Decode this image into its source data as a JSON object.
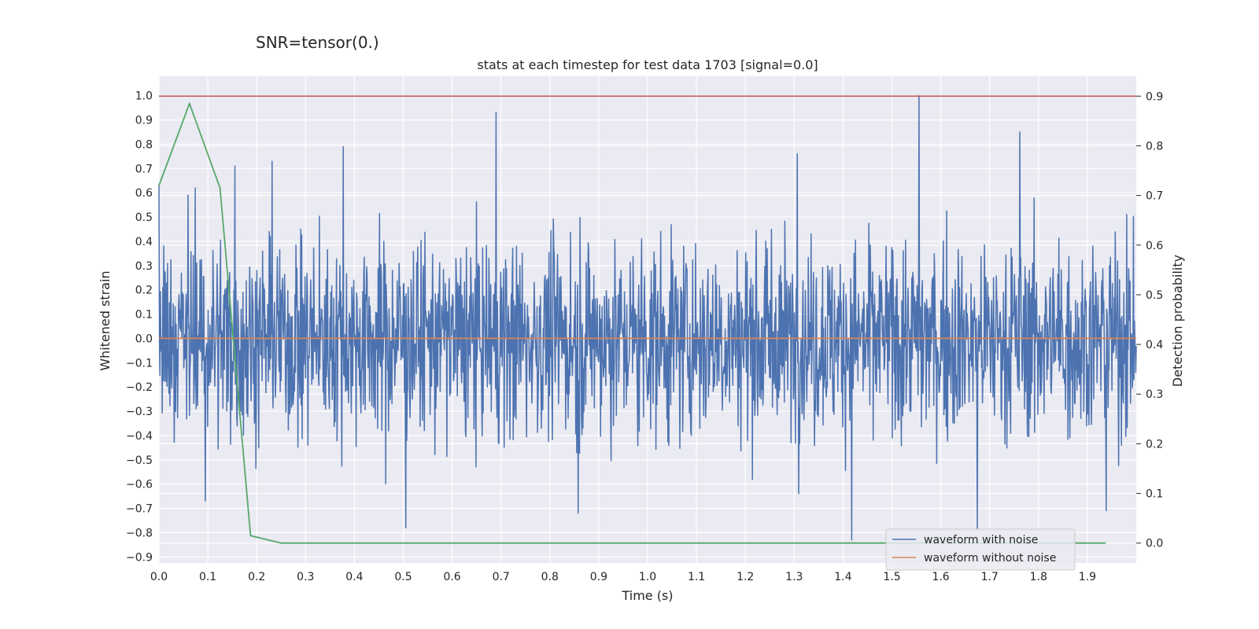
{
  "suptitle": "SNR=tensor(0.)",
  "chart_data": {
    "type": "line",
    "title": "stats at each timestep for test data 1703 [signal=0.0]",
    "xlabel": "Time (s)",
    "ylabel": "Whitened strain",
    "y2label": "Detection probability",
    "xlim": [
      0.0,
      2.0
    ],
    "ylim": [
      -0.925,
      1.08
    ],
    "y2lim": [
      -0.04,
      0.94
    ],
    "x_ticks": [
      0.0,
      0.1,
      0.2,
      0.3,
      0.4,
      0.5,
      0.6,
      0.7,
      0.8,
      0.9,
      1.0,
      1.1,
      1.2,
      1.3,
      1.4,
      1.5,
      1.6,
      1.7,
      1.8,
      1.9
    ],
    "x_tick_labels": [
      "0.0",
      "0.1",
      "0.2",
      "0.3",
      "0.4",
      "0.5",
      "0.6",
      "0.7",
      "0.8",
      "0.9",
      "1.0",
      "1.1",
      "1.2",
      "1.3",
      "1.4",
      "1.5",
      "1.6",
      "1.7",
      "1.8",
      "1.9"
    ],
    "y_ticks": [
      1.0,
      0.9,
      0.8,
      0.7,
      0.6,
      0.5,
      0.4,
      0.3,
      0.2,
      0.1,
      0.0,
      -0.1,
      -0.2,
      -0.3,
      -0.4,
      -0.5,
      -0.6,
      -0.7,
      -0.8,
      -0.9
    ],
    "y_tick_labels": [
      "1.0",
      "0.9",
      "0.8",
      "0.7",
      "0.6",
      "0.5",
      "0.4",
      "0.3",
      "0.2",
      "0.1",
      "0.0",
      "−0.1",
      "−0.2",
      "−0.3",
      "−0.4",
      "−0.5",
      "−0.6",
      "−0.7",
      "−0.8",
      "−0.9"
    ],
    "y2_ticks": [
      0.9,
      0.8,
      0.7,
      0.6,
      0.5,
      0.4,
      0.3,
      0.2,
      0.1,
      0.0
    ],
    "y2_tick_labels": [
      "0.9",
      "0.8",
      "0.7",
      "0.6",
      "0.5",
      "0.4",
      "0.3",
      "0.2",
      "0.1",
      "0.0"
    ],
    "grid": true,
    "legend_position": "bottom-right",
    "series": [
      {
        "name": "waveform with noise",
        "color": "#4c72b0",
        "axis": "left",
        "x_start": 0.0,
        "x_end": 2.0,
        "peaks": [
          {
            "x": 0.0,
            "y": 0.63
          },
          {
            "x": 0.06,
            "y": 0.59
          },
          {
            "x": 0.074,
            "y": 0.62
          },
          {
            "x": 0.155,
            "y": 0.71
          },
          {
            "x": 0.232,
            "y": 0.73
          },
          {
            "x": 0.377,
            "y": 0.79
          },
          {
            "x": 0.69,
            "y": 0.93
          },
          {
            "x": 1.306,
            "y": 0.76
          },
          {
            "x": 1.555,
            "y": 1.0
          },
          {
            "x": 1.762,
            "y": 0.85
          },
          {
            "x": 1.98,
            "y": 0.51
          },
          {
            "x": 0.505,
            "y": -0.78
          },
          {
            "x": 0.858,
            "y": -0.72
          },
          {
            "x": 1.418,
            "y": -0.83
          },
          {
            "x": 1.675,
            "y": -0.79
          },
          {
            "x": 1.938,
            "y": -0.71
          },
          {
            "x": 0.095,
            "y": -0.67
          }
        ]
      },
      {
        "name": "waveform without noise",
        "color": "#dd8452",
        "axis": "left",
        "x": [
          0.0,
          2.0
        ],
        "y": [
          0.0,
          0.0
        ]
      },
      {
        "name": "",
        "color": "#55a868",
        "axis": "right",
        "x": [
          0.0,
          0.0625,
          0.125,
          0.1875,
          0.25,
          0.3125,
          0.375,
          0.4375,
          0.5,
          0.5625,
          0.625,
          0.6875,
          0.75,
          0.8125,
          0.875,
          0.9375,
          1.0,
          1.0625,
          1.125,
          1.1875,
          1.25,
          1.3125,
          1.375,
          1.4375,
          1.5,
          1.5625,
          1.625,
          1.6875,
          1.75,
          1.8125,
          1.875,
          1.9375
        ],
        "y": [
          0.72,
          0.885,
          0.715,
          0.015,
          0.0,
          0.0,
          0.0,
          0.0,
          0.0,
          0.0,
          0.0,
          0.0,
          0.0,
          0.0,
          0.0,
          0.0,
          0.0,
          0.0,
          0.0,
          0.0,
          0.0,
          0.0,
          0.0,
          0.0,
          0.0,
          0.0,
          0.0,
          0.0,
          0.0,
          0.0,
          0.0,
          0.0
        ]
      }
    ],
    "hline": {
      "axis": "right",
      "y": 0.9,
      "color": "#c44e52"
    }
  }
}
